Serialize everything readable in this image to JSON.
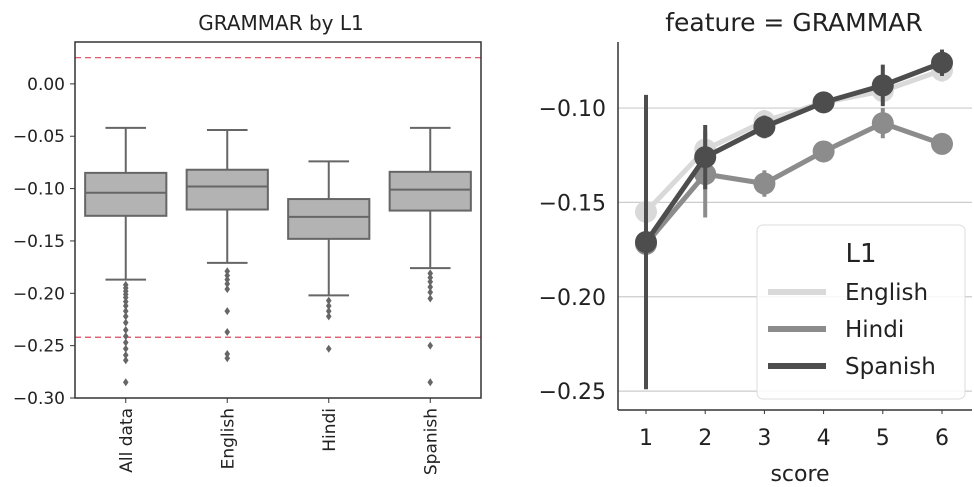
{
  "chart_data": [
    {
      "type": "box",
      "title": "GRAMMAR by L1",
      "xlabel": "",
      "ylabel": "",
      "ylim": [
        -0.3,
        0.04
      ],
      "yticks": [
        0.0,
        -0.05,
        -0.1,
        -0.15,
        -0.2,
        -0.25,
        -0.3
      ],
      "ytick_labels": [
        "0.00",
        "−0.05",
        "−0.10",
        "−0.15",
        "−0.20",
        "−0.25",
        "−0.30"
      ],
      "categories": [
        "All data",
        "English",
        "Hindi",
        "Spanish"
      ],
      "boxes": [
        {
          "whislo": -0.187,
          "q1": -0.126,
          "med": -0.104,
          "q3": -0.085,
          "whishi": -0.042,
          "fliers": [
            -0.192,
            -0.195,
            -0.198,
            -0.201,
            -0.204,
            -0.208,
            -0.212,
            -0.217,
            -0.222,
            -0.228,
            -0.235,
            -0.241,
            -0.247,
            -0.253,
            -0.259,
            -0.264,
            -0.285
          ]
        },
        {
          "whislo": -0.171,
          "q1": -0.12,
          "med": -0.098,
          "q3": -0.082,
          "whishi": -0.044,
          "fliers": [
            -0.179,
            -0.183,
            -0.187,
            -0.191,
            -0.196,
            -0.217,
            -0.237,
            -0.258,
            -0.262
          ]
        },
        {
          "whislo": -0.202,
          "q1": -0.148,
          "med": -0.127,
          "q3": -0.11,
          "whishi": -0.074,
          "fliers": [
            -0.207,
            -0.212,
            -0.217,
            -0.222,
            -0.253
          ]
        },
        {
          "whislo": -0.176,
          "q1": -0.121,
          "med": -0.101,
          "q3": -0.084,
          "whishi": -0.042,
          "fliers": [
            -0.181,
            -0.185,
            -0.189,
            -0.194,
            -0.199,
            -0.205,
            -0.25,
            -0.285
          ]
        }
      ],
      "reference_lines": [
        0.025,
        -0.242
      ],
      "box_color": "#b3b3b3",
      "line_color": "#666666",
      "reference_line_color": "#d9485f"
    },
    {
      "type": "line",
      "title": "feature = GRAMMAR",
      "xlabel": "score",
      "ylabel": "",
      "x": [
        1,
        2,
        3,
        4,
        5,
        6
      ],
      "xtick_labels": [
        "1",
        "2",
        "3",
        "4",
        "5",
        "6"
      ],
      "ylim": [
        -0.26,
        -0.065
      ],
      "yticks": [
        -0.1,
        -0.15,
        -0.2,
        -0.25
      ],
      "ytick_labels": [
        "−0.10",
        "−0.15",
        "−0.20",
        "−0.25"
      ],
      "grid": "horizontal",
      "legend": {
        "title": "L1",
        "placement": "lower-right"
      },
      "series": [
        {
          "name": "English",
          "color": "#d9d9d9",
          "values": [
            -0.155,
            -0.122,
            -0.107,
            -0.097,
            -0.091,
            -0.08
          ],
          "err_low": [
            -0.16,
            -0.13,
            -0.113,
            -0.101,
            -0.096,
            -0.086
          ],
          "err_high": [
            -0.15,
            -0.114,
            -0.101,
            -0.093,
            -0.086,
            -0.074
          ]
        },
        {
          "name": "Hindi",
          "color": "#8c8c8c",
          "values": [
            -0.172,
            -0.135,
            -0.14,
            -0.123,
            -0.108,
            -0.119
          ],
          "err_low": [
            -0.176,
            -0.158,
            -0.147,
            -0.127,
            -0.116,
            -0.123
          ],
          "err_high": [
            -0.168,
            -0.112,
            -0.133,
            -0.119,
            -0.1,
            -0.115
          ]
        },
        {
          "name": "Spanish",
          "color": "#4d4d4d",
          "values": [
            -0.171,
            -0.126,
            -0.11,
            -0.097,
            -0.088,
            -0.076
          ],
          "err_low": [
            -0.249,
            -0.143,
            -0.116,
            -0.101,
            -0.099,
            -0.083
          ],
          "err_high": [
            -0.093,
            -0.109,
            -0.104,
            -0.093,
            -0.077,
            -0.069
          ]
        }
      ]
    }
  ]
}
